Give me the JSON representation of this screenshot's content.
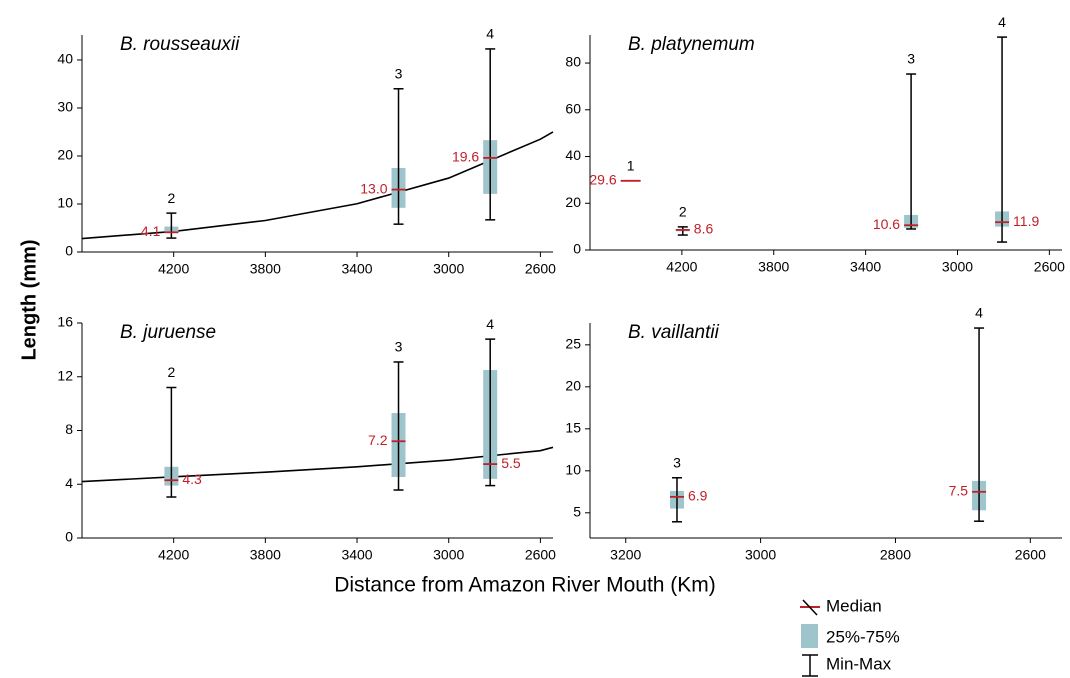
{
  "chart_data": [
    {
      "type": "box",
      "title": "B. rousseauxii",
      "xlim": [
        4600,
        2545
      ],
      "xticks": [
        4200,
        3800,
        3400,
        3000,
        2600
      ],
      "ylim": [
        0,
        45.2
      ],
      "yticks": [
        0,
        10,
        20,
        30,
        40
      ],
      "box_color": "#9fc5cc",
      "median_color": "#c0202a",
      "boxes": {
        "x": [
          4210,
          3219,
          2819
        ],
        "site_labels": [
          "2",
          "3",
          "4"
        ],
        "min": [
          2.9,
          5.8,
          6.7
        ],
        "q1": [
          4.0,
          9.2,
          12.1
        ],
        "median": [
          4.1,
          13.0,
          19.6
        ],
        "q3": [
          5.3,
          17.5,
          23.3
        ],
        "max": [
          8.1,
          34.0,
          42.3
        ],
        "value_labels": [
          "4.1",
          "13.0",
          "19.6"
        ]
      },
      "fit": {
        "color": "#000000",
        "x": [
          4600,
          4200,
          3800,
          3400,
          3000,
          2600,
          2545
        ],
        "values": [
          2.8,
          4.29,
          6.56,
          10.05,
          15.4,
          23.5,
          25
        ]
      }
    },
    {
      "type": "box",
      "title": "B. platynemum",
      "xlim": [
        4600,
        2545
      ],
      "xticks": [
        4200,
        3800,
        3400,
        3000,
        2600
      ],
      "ylim": [
        0,
        92
      ],
      "yticks": [
        0,
        20,
        40,
        60,
        80
      ],
      "box_color": "#9fc5cc",
      "median_color": "#c0202a",
      "boxes": {
        "x": [
          4423,
          4196,
          3202,
          2806
        ],
        "site_labels": [
          "1",
          "2",
          "3",
          "4"
        ],
        "min": [
          null,
          6.4,
          9.0,
          3.4
        ],
        "q1": [
          null,
          8.0,
          9.5,
          10.0
        ],
        "median": [
          29.6,
          8.6,
          10.6,
          11.9
        ],
        "q3": [
          null,
          9.0,
          15.0,
          16.5
        ],
        "max": [
          null,
          9.9,
          75.3,
          91.1
        ],
        "value_labels": [
          "29.6",
          "8.6",
          "10.6",
          "11.9"
        ]
      }
    },
    {
      "type": "box",
      "title": "B. juruense",
      "xlim": [
        4600,
        2545
      ],
      "xticks": [
        4200,
        3800,
        3400,
        3000,
        2600
      ],
      "ylim": [
        0,
        16
      ],
      "yticks": [
        0,
        4,
        8,
        12,
        16
      ],
      "box_color": "#9fc5cc",
      "median_color": "#c0202a",
      "boxes": {
        "x": [
          4210,
          3219,
          2819
        ],
        "site_labels": [
          "2",
          "3",
          "4"
        ],
        "min": [
          3.05,
          3.57,
          3.9
        ],
        "q1": [
          3.9,
          4.54,
          4.4
        ],
        "median": [
          4.3,
          7.2,
          5.5
        ],
        "q3": [
          5.3,
          9.3,
          12.5
        ],
        "max": [
          11.2,
          13.1,
          14.8
        ],
        "value_labels": [
          "4.3",
          "7.2",
          "5.5"
        ]
      },
      "fit": {
        "color": "#000000",
        "x": [
          4600,
          4200,
          3800,
          3400,
          3000,
          2600,
          2545
        ],
        "values": [
          4.2,
          4.55,
          4.9,
          5.3,
          5.8,
          6.5,
          6.75
        ]
      }
    },
    {
      "type": "box",
      "title": "B. vaillantii",
      "xlim": [
        3253,
        2553
      ],
      "xticks": [
        3200,
        3000,
        2800,
        2600
      ],
      "ylim": [
        2.0,
        27.6
      ],
      "yticks": [
        5,
        10,
        15,
        20,
        25
      ],
      "box_color": "#9fc5cc",
      "median_color": "#c0202a",
      "boxes": {
        "x": [
          3124,
          2676
        ],
        "site_labels": [
          "3",
          "4"
        ],
        "min": [
          3.93,
          4.0
        ],
        "q1": [
          5.5,
          5.3
        ],
        "median": [
          6.9,
          7.5
        ],
        "q3": [
          7.6,
          8.8
        ],
        "max": [
          9.17,
          27.0
        ],
        "value_labels": [
          "6.9",
          "7.5"
        ]
      }
    }
  ],
  "y_label": "Length (mm)",
  "x_label": "Distance from Amazon River Mouth (Km)",
  "legend": {
    "median": "Median",
    "box": "25%-75%",
    "range": "Min-Max"
  }
}
